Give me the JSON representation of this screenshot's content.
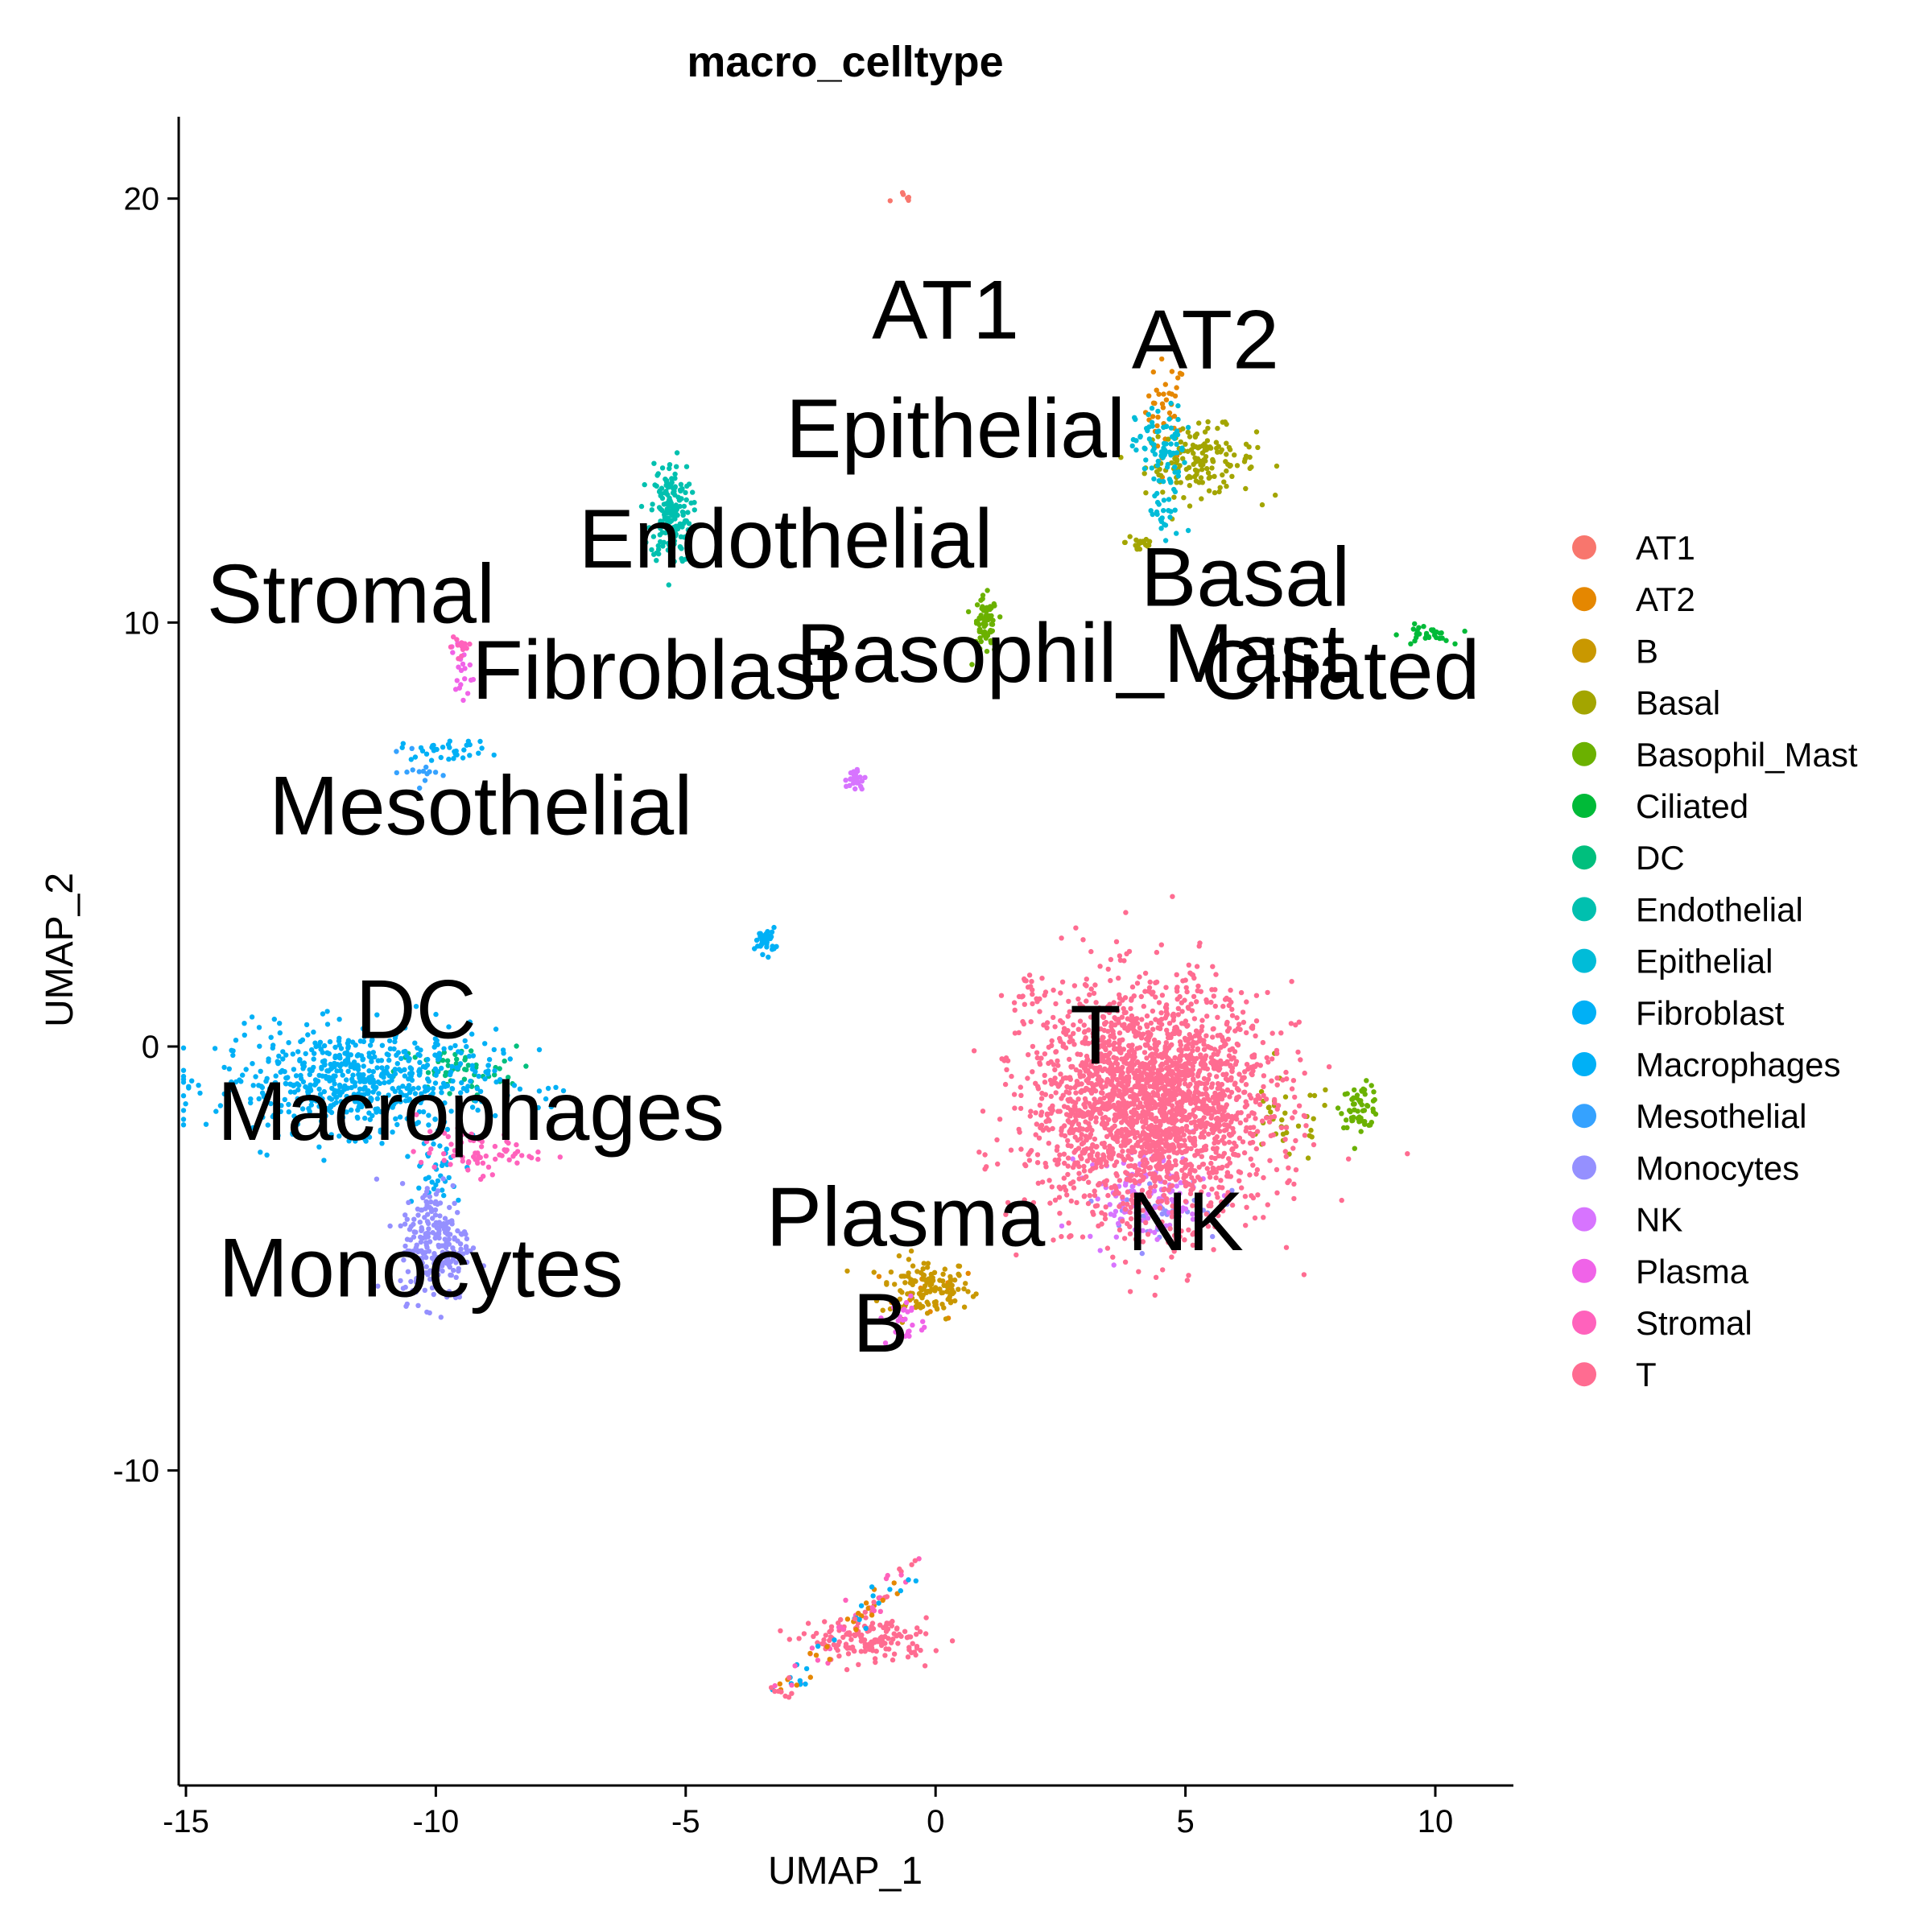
{
  "chart_data": {
    "type": "scatter",
    "title": "macro_celltype",
    "xlabel": "UMAP_1",
    "ylabel": "UMAP_2",
    "xlim": [
      -15.1,
      11.5
    ],
    "ylim": [
      -17.5,
      22
    ],
    "x_ticks": [
      -15,
      -10,
      -5,
      0,
      5,
      10
    ],
    "y_ticks": [
      -10,
      0,
      10,
      20
    ],
    "grid": false,
    "legend_position": "right",
    "series": [
      {
        "name": "AT1",
        "color": "#F8766D",
        "clusters": [
          {
            "cx": -0.6,
            "cy": 20.0,
            "sx": 0.15,
            "sy": 0.1,
            "n": 6
          }
        ]
      },
      {
        "name": "AT2",
        "color": "#E58700",
        "clusters": [
          {
            "cx": 4.6,
            "cy": 15.0,
            "sx": 0.2,
            "sy": 0.6,
            "n": 40
          },
          {
            "cx": -0.1,
            "cy": -5.8,
            "sx": 0.5,
            "sy": 0.3,
            "n": 15
          }
        ]
      },
      {
        "name": "B",
        "color": "#C99800",
        "clusters": [
          {
            "cx": -0.2,
            "cy": -5.7,
            "sx": 0.45,
            "sy": 0.35,
            "n": 130
          }
        ]
      },
      {
        "name": "Basal",
        "color": "#A3A500",
        "clusters": [
          {
            "cx": 5.3,
            "cy": 13.8,
            "sx": 0.55,
            "sy": 0.4,
            "n": 150
          },
          {
            "cx": 4.1,
            "cy": 11.9,
            "sx": 0.15,
            "sy": 0.15,
            "n": 20
          },
          {
            "cx": 7.0,
            "cy": -1.8,
            "sx": 0.5,
            "sy": 0.5,
            "n": 35
          }
        ]
      },
      {
        "name": "Basophil_Mast",
        "color": "#6BB100",
        "clusters": [
          {
            "cx": 1.0,
            "cy": 9.9,
            "sx": 0.12,
            "sy": 0.35,
            "n": 70
          },
          {
            "cx": 8.5,
            "cy": -1.4,
            "sx": 0.2,
            "sy": 0.25,
            "n": 60
          }
        ]
      },
      {
        "name": "Ciliated",
        "color": "#00BA38",
        "clusters": [
          {
            "cx": 9.8,
            "cy": 9.7,
            "sx": 0.25,
            "sy": 0.12,
            "n": 30
          }
        ]
      },
      {
        "name": "DC",
        "color": "#00BF7D",
        "clusters": [
          {
            "cx": -9.6,
            "cy": -0.6,
            "sx": 0.6,
            "sy": 0.3,
            "n": 60
          }
        ]
      },
      {
        "name": "Endothelial",
        "color": "#00C0AF",
        "clusters": [
          {
            "cx": -5.3,
            "cy": 12.6,
            "sx": 0.2,
            "sy": 0.6,
            "n": 180
          }
        ]
      },
      {
        "name": "Epithelial",
        "color": "#00BCD8",
        "clusters": [
          {
            "cx": 4.5,
            "cy": 14.1,
            "sx": 0.25,
            "sy": 0.5,
            "n": 80
          },
          {
            "cx": 4.6,
            "cy": 12.5,
            "sx": 0.2,
            "sy": 0.35,
            "n": 25
          }
        ]
      },
      {
        "name": "Fibroblast",
        "color": "#00B0F6",
        "clusters": [
          {
            "cx": -3.4,
            "cy": 2.5,
            "sx": 0.1,
            "sy": 0.15,
            "n": 35
          },
          {
            "cx": -9.8,
            "cy": 7.0,
            "sx": 0.45,
            "sy": 0.12,
            "n": 35
          }
        ]
      },
      {
        "name": "Macrophages",
        "color": "#00B0F6",
        "clusters": [
          {
            "cx": -11.6,
            "cy": -0.8,
            "sx": 1.4,
            "sy": 0.6,
            "n": 600
          },
          {
            "cx": -10.0,
            "cy": -2.8,
            "sx": 0.3,
            "sy": 0.6,
            "n": 40
          }
        ]
      },
      {
        "name": "Mesothelial",
        "color": "#35A2FF",
        "clusters": [
          {
            "cx": -10.3,
            "cy": 6.5,
            "sx": 0.2,
            "sy": 0.25,
            "n": 15
          }
        ]
      },
      {
        "name": "Monocytes",
        "color": "#9590FF",
        "clusters": [
          {
            "cx": -10.0,
            "cy": -4.6,
            "sx": 0.35,
            "sy": 0.7,
            "n": 230
          },
          {
            "cx": 4.5,
            "cy": -3.8,
            "sx": 0.6,
            "sy": 0.4,
            "n": 40
          }
        ]
      },
      {
        "name": "NK",
        "color": "#D774FF",
        "clusters": [
          {
            "cx": 4.2,
            "cy": -3.5,
            "sx": 0.6,
            "sy": 0.55,
            "n": 120
          },
          {
            "cx": -1.6,
            "cy": 6.3,
            "sx": 0.1,
            "sy": 0.15,
            "n": 25
          }
        ]
      },
      {
        "name": "Plasma",
        "color": "#F063E8",
        "clusters": [
          {
            "cx": -0.6,
            "cy": -6.5,
            "sx": 0.2,
            "sy": 0.3,
            "n": 25
          },
          {
            "cx": -9.5,
            "cy": 8.9,
            "sx": 0.1,
            "sy": 0.4,
            "n": 20
          }
        ]
      },
      {
        "name": "Stromal",
        "color": "#FF62BC",
        "clusters": [
          {
            "cx": -9.2,
            "cy": -2.5,
            "sx": 0.6,
            "sy": 0.25,
            "n": 70
          },
          {
            "cx": -9.5,
            "cy": 9.4,
            "sx": 0.1,
            "sy": 0.2,
            "n": 15
          }
        ]
      },
      {
        "name": "T",
        "color": "#FF6C91",
        "clusters": [
          {
            "cx": 4.3,
            "cy": -1.3,
            "sx": 1.2,
            "sy": 1.35,
            "n": 2300
          },
          {
            "cx": 2.0,
            "cy": 1.2,
            "sx": 0.4,
            "sy": 0.15,
            "n": 20
          },
          {
            "cx": -1.3,
            "cy": -14.0,
            "sx": 0.6,
            "sy": 0.25,
            "n": 150
          }
        ]
      }
    ],
    "trajectory_tail": {
      "from": [
        -0.4,
        -12.2
      ],
      "to": [
        -3.2,
        -15.3
      ],
      "n": 90,
      "colors": [
        "#FF6C91",
        "#FF62BC",
        "#00B0F6",
        "#E58700"
      ]
    },
    "cluster_labels": [
      {
        "text": "AT1",
        "x": 0.2,
        "y": 16.7
      },
      {
        "text": "AT2",
        "x": 5.4,
        "y": 16.0
      },
      {
        "text": "Epithelial",
        "x": 0.4,
        "y": 13.9
      },
      {
        "text": "Endothelial",
        "x": -3.0,
        "y": 11.3
      },
      {
        "text": "Stromal",
        "x": -11.7,
        "y": 10.0
      },
      {
        "text": "Basal",
        "x": 6.2,
        "y": 10.4
      },
      {
        "text": "Basophil_Mast",
        "x": 2.7,
        "y": 8.6
      },
      {
        "text": "Ciliated",
        "x": 8.1,
        "y": 8.2
      },
      {
        "text": "Fibroblast",
        "x": -5.6,
        "y": 8.2
      },
      {
        "text": "Mesothelial",
        "x": -9.1,
        "y": 5.0
      },
      {
        "text": "DC",
        "x": -10.4,
        "y": 0.2
      },
      {
        "text": "Macrophages",
        "x": -9.3,
        "y": -2.2
      },
      {
        "text": "Monocytes",
        "x": -10.3,
        "y": -5.9
      },
      {
        "text": "Plasma",
        "x": -0.6,
        "y": -4.7
      },
      {
        "text": "NK",
        "x": 5.0,
        "y": -4.8
      },
      {
        "text": "T",
        "x": 3.2,
        "y": -0.4
      },
      {
        "text": "B",
        "x": -1.1,
        "y": -7.2
      }
    ]
  }
}
